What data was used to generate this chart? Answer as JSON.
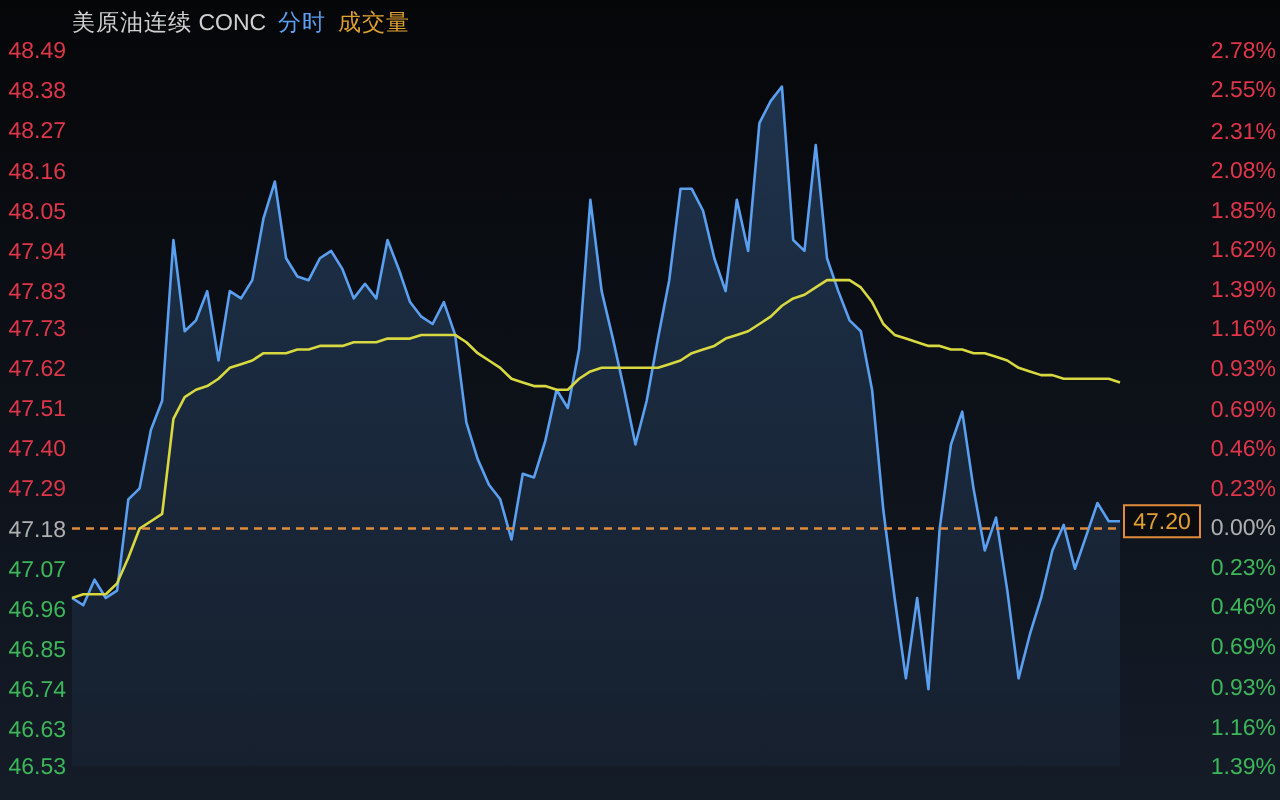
{
  "chart_data": {
    "type": "area",
    "title": "美原油连续 CONC",
    "annotations": [
      "分时",
      "成交量",
      {
        "text": "47.20",
        "y": 47.2
      }
    ],
    "categories": [
      null,
      null,
      null,
      null,
      null,
      null,
      null,
      null,
      null,
      null,
      null,
      null,
      null,
      null,
      null,
      null,
      null,
      null,
      null,
      null,
      null,
      null,
      null,
      null,
      null,
      null,
      null,
      null,
      null,
      null,
      null,
      null,
      null,
      null,
      null,
      null,
      null,
      null,
      null,
      null,
      null,
      null,
      null,
      null,
      null,
      null,
      null,
      null,
      null,
      null,
      null,
      null,
      null,
      null,
      null,
      null,
      null,
      null,
      null,
      null,
      null,
      null,
      null,
      null,
      null,
      null,
      null,
      null,
      null,
      null,
      null,
      null,
      null,
      null,
      null,
      null,
      null,
      null,
      null,
      null,
      null,
      null,
      null,
      null,
      null,
      null,
      null,
      null,
      null,
      null,
      null,
      null,
      null,
      null
    ],
    "series": [
      {
        "color": "#5a9ff0",
        "values": [
          46.99,
          46.97,
          47.04,
          46.99,
          47.01,
          47.26,
          47.29,
          47.45,
          47.53,
          47.97,
          47.72,
          47.75,
          47.83,
          47.64,
          47.83,
          47.81,
          47.86,
          48.03,
          48.13,
          47.92,
          47.87,
          47.86,
          47.92,
          47.94,
          47.89,
          47.81,
          47.85,
          47.81,
          47.97,
          47.89,
          47.8,
          47.76,
          47.74,
          47.8,
          47.71,
          47.47,
          47.37,
          47.3,
          47.26,
          47.15,
          47.33,
          47.32,
          47.42,
          47.56,
          47.51,
          47.67,
          48.08,
          47.83,
          47.7,
          47.56,
          47.41,
          47.53,
          47.7,
          47.86,
          48.11,
          48.11,
          48.05,
          47.92,
          47.83,
          48.08,
          47.94,
          48.29,
          48.35,
          48.39,
          47.97,
          47.94,
          48.23,
          47.92,
          47.83,
          47.75,
          47.72,
          47.56,
          47.23,
          46.99,
          46.77,
          46.99,
          46.74,
          47.18,
          47.41,
          47.5,
          47.29,
          47.12,
          47.21,
          47.01,
          46.77,
          46.89,
          46.99,
          47.12,
          47.19,
          47.07,
          47.16,
          47.25,
          47.2,
          47.2
        ]
      },
      {
        "type": "line",
        "color": "#d8d840",
        "values": [
          46.99,
          47.0,
          47.0,
          47.0,
          47.03,
          47.1,
          47.18,
          47.2,
          47.22,
          47.48,
          47.54,
          47.56,
          47.57,
          47.59,
          47.62,
          47.63,
          47.64,
          47.66,
          47.66,
          47.66,
          47.67,
          47.67,
          47.68,
          47.68,
          47.68,
          47.69,
          47.69,
          47.69,
          47.7,
          47.7,
          47.7,
          47.71,
          47.71,
          47.71,
          47.71,
          47.69,
          47.66,
          47.64,
          47.62,
          47.59,
          47.58,
          47.57,
          47.57,
          47.56,
          47.56,
          47.59,
          47.61,
          47.62,
          47.62,
          47.62,
          47.62,
          47.62,
          47.62,
          47.63,
          47.64,
          47.66,
          47.67,
          47.68,
          47.7,
          47.71,
          47.72,
          47.74,
          47.76,
          47.79,
          47.81,
          47.82,
          47.84,
          47.86,
          47.86,
          47.86,
          47.84,
          47.8,
          47.74,
          47.71,
          47.7,
          47.69,
          47.68,
          47.68,
          47.67,
          47.67,
          47.66,
          47.66,
          47.65,
          47.64,
          47.62,
          47.61,
          47.6,
          47.6,
          47.59,
          47.59,
          47.59,
          47.59,
          47.59,
          47.58
        ]
      }
    ],
    "ylim": [
      46.53,
      48.49
    ],
    "yticks": [
      48.49,
      48.38,
      48.27,
      48.16,
      48.05,
      47.94,
      47.83,
      47.73,
      47.62,
      47.51,
      {
        "value": 47.4,
        "label": "47.40"
      },
      47.29,
      47.18,
      47.07,
      46.96,
      46.85,
      46.74,
      46.63,
      46.53
    ],
    "y2lim": [
      -1.39,
      2.78
    ],
    "y2ticks": [
      {
        "value": 2.78,
        "label": "2.78%"
      },
      {
        "value": 2.55,
        "label": "2.55%"
      },
      {
        "value": 2.31,
        "label": "2.31%"
      },
      {
        "value": 2.08,
        "label": "2.08%"
      },
      {
        "value": 1.85,
        "label": "1.85%"
      },
      {
        "value": 1.62,
        "label": "1.62%"
      },
      {
        "value": 1.39,
        "label": "1.39%"
      },
      {
        "value": 1.16,
        "label": "1.16%"
      },
      {
        "value": 0.93,
        "label": "0.93%"
      },
      {
        "value": 0.69,
        "label": "0.69%"
      },
      {
        "value": 0.46,
        "label": "0.46%"
      },
      {
        "value": 0.23,
        "label": "0.23%"
      },
      {
        "value": 0,
        "label": "0.00%"
      },
      {
        "value": -0.23,
        "label": "0.23%"
      },
      {
        "value": -0.46,
        "label": "0.46%"
      },
      {
        "value": -0.69,
        "label": "0.69%"
      },
      {
        "value": -0.93,
        "label": "0.93%"
      },
      {
        "value": -1.16,
        "label": "1.16%"
      },
      {
        "value": -1.39,
        "label": "1.39%"
      }
    ],
    "ref_lines": [
      {
        "axis": "y",
        "value": 47.18,
        "color": "#e08a3c",
        "line_style": "dashed"
      }
    ],
    "grid": false
  }
}
